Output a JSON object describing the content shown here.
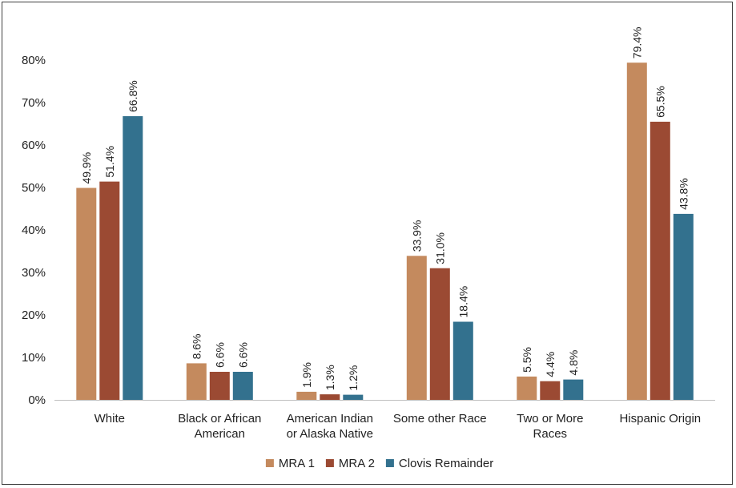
{
  "chart_data": {
    "type": "bar",
    "title": "",
    "xlabel": "",
    "ylabel": "",
    "ylim": [
      0,
      80
    ],
    "ytick_values": [
      0,
      10,
      20,
      30,
      40,
      50,
      60,
      70,
      80
    ],
    "ytick_labels": [
      "0%",
      "10%",
      "20%",
      "30%",
      "40%",
      "50%",
      "60%",
      "70%",
      "80%"
    ],
    "grid": false,
    "legend_position": "bottom",
    "categories": [
      [
        "White"
      ],
      [
        "Black or African",
        "American"
      ],
      [
        "American Indian",
        "or Alaska Native"
      ],
      [
        "Some other Race"
      ],
      [
        "Two or More",
        "Races"
      ],
      [
        "Hispanic Origin"
      ]
    ],
    "series": [
      {
        "name": "MRA 1",
        "color": "#C48A5E",
        "values": [
          49.9,
          8.6,
          1.9,
          33.9,
          5.5,
          79.4
        ],
        "labels": [
          "49.9%",
          "8.6%",
          "1.9%",
          "33.9%",
          "5.5%",
          "79.4%"
        ]
      },
      {
        "name": "MRA 2",
        "color": "#9B4A33",
        "values": [
          51.4,
          6.6,
          1.3,
          31.0,
          4.4,
          65.5
        ],
        "labels": [
          "51.4%",
          "6.6%",
          "1.3%",
          "31.0%",
          "4.4%",
          "65.5%"
        ]
      },
      {
        "name": "Clovis Remainder",
        "color": "#33718E",
        "values": [
          66.8,
          6.6,
          1.2,
          18.4,
          4.8,
          43.8
        ],
        "labels": [
          "66.8%",
          "6.6%",
          "1.2%",
          "18.4%",
          "4.8%",
          "43.8%"
        ]
      }
    ]
  }
}
